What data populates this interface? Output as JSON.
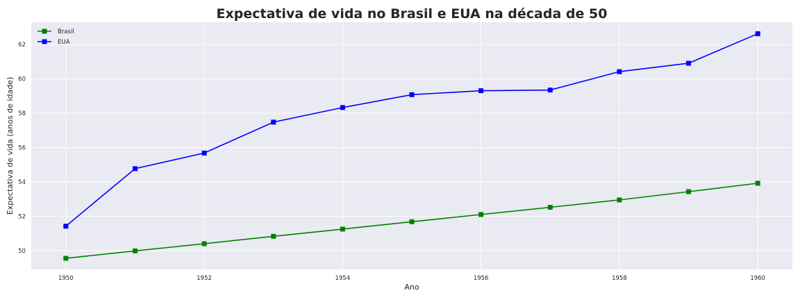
{
  "chart_data": {
    "type": "line",
    "title": "Expectativa de vida no Brasil e EUA na década de 50",
    "xlabel": "Ano",
    "ylabel": "Expectativa de vida (anos de idade)",
    "x": [
      1950,
      1951,
      1952,
      1953,
      1954,
      1955,
      1956,
      1957,
      1958,
      1959,
      1960
    ],
    "xlim": [
      1949.5,
      1960.5
    ],
    "ylim": [
      48.9,
      63.3
    ],
    "xticks": [
      1950,
      1952,
      1954,
      1956,
      1958,
      1960
    ],
    "yticks": [
      50,
      52,
      54,
      56,
      58,
      60,
      62
    ],
    "grid": true,
    "legend_position": "top-left",
    "series": [
      {
        "name": "Brasil",
        "color": "#008000",
        "marker": "square",
        "values": [
          49.55,
          49.98,
          50.4,
          50.83,
          51.25,
          51.68,
          52.1,
          52.52,
          52.95,
          53.43,
          53.92
        ]
      },
      {
        "name": "EUA",
        "color": "#0000ff",
        "marker": "square",
        "values": [
          51.42,
          54.77,
          55.68,
          57.48,
          58.33,
          59.08,
          59.31,
          59.35,
          60.42,
          60.91,
          62.63
        ]
      }
    ]
  }
}
